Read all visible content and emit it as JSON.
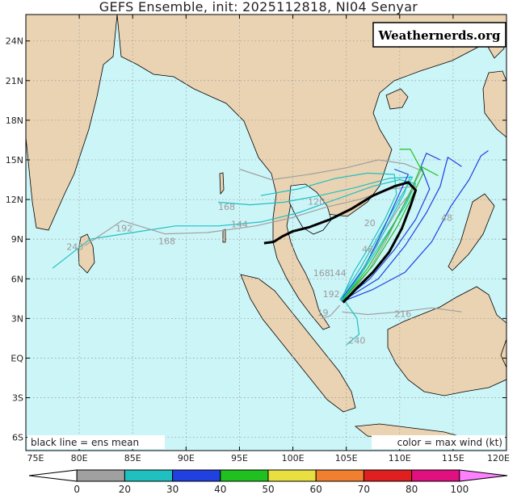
{
  "title": "GEFS Ensemble, init: 2025112818, NI04 Senyar",
  "watermark": "Weathernerds.org",
  "footer": {
    "left": "black line = ens mean",
    "right": "color = max wind (kt)"
  },
  "axes": {
    "lon_labels": [
      "75E",
      "80E",
      "85E",
      "90E",
      "95E",
      "100E",
      "105E",
      "110E",
      "115E",
      "120E"
    ],
    "lat_labels": [
      "24N",
      "21N",
      "18N",
      "15N",
      "12N",
      "9N",
      "6N",
      "3N",
      "EQ",
      "3S",
      "6S"
    ]
  },
  "colorbar": {
    "labels": [
      "0",
      "20",
      "30",
      "40",
      "50",
      "60",
      "70",
      "80",
      "100"
    ],
    "bins": [
      {
        "color": "#ffffff"
      },
      {
        "color": "#a0a0a0"
      },
      {
        "color": "#20c0c0"
      },
      {
        "color": "#2040e0"
      },
      {
        "color": "#20c020"
      },
      {
        "color": "#e8e040"
      },
      {
        "color": "#f08030"
      },
      {
        "color": "#e02020"
      },
      {
        "color": "#e01080"
      },
      {
        "color": "#ff80ff"
      }
    ]
  },
  "hour_labels": [
    {
      "text": "120",
      "lon": 102.2,
      "lat": 11.6
    },
    {
      "text": "168",
      "lon": 93.8,
      "lat": 11.2
    },
    {
      "text": "144",
      "lon": 95.0,
      "lat": 9.9
    },
    {
      "text": "192",
      "lon": 84.2,
      "lat": 9.6
    },
    {
      "text": "168",
      "lon": 88.2,
      "lat": 8.6
    },
    {
      "text": "240",
      "lon": 79.6,
      "lat": 8.2
    },
    {
      "text": "48",
      "lon": 114.4,
      "lat": 10.4
    },
    {
      "text": "20",
      "lon": 107.2,
      "lat": 10.0
    },
    {
      "text": "48",
      "lon": 107.0,
      "lat": 8.0
    },
    {
      "text": "168",
      "lon": 102.7,
      "lat": 6.2
    },
    {
      "text": "144",
      "lon": 104.2,
      "lat": 6.2
    },
    {
      "text": "192",
      "lon": 103.6,
      "lat": 4.6
    },
    {
      "text": "19",
      "lon": 102.8,
      "lat": 3.2
    },
    {
      "text": "216",
      "lon": 110.3,
      "lat": 3.1
    },
    {
      "text": "240",
      "lon": 106.0,
      "lat": 1.1
    }
  ],
  "ensemble_mean": {
    "color": "#000000",
    "points": [
      [
        104.7,
        4.2
      ],
      [
        106.0,
        5.3
      ],
      [
        107.5,
        6.5
      ],
      [
        109.0,
        8.0
      ],
      [
        110.2,
        9.8
      ],
      [
        111.0,
        11.5
      ],
      [
        111.5,
        12.7
      ],
      [
        110.8,
        13.3
      ],
      [
        109.5,
        13.0
      ],
      [
        107.5,
        12.3
      ],
      [
        105.5,
        11.3
      ],
      [
        103.5,
        10.5
      ],
      [
        101.5,
        9.9
      ],
      [
        100.0,
        9.6
      ],
      [
        99.0,
        9.2
      ],
      [
        98.2,
        8.8
      ],
      [
        97.3,
        8.7
      ]
    ]
  },
  "tracks": [
    {
      "color": "#20c0c0",
      "points": [
        [
          104.6,
          4.3
        ],
        [
          106.5,
          6.5
        ],
        [
          108.5,
          9.0
        ],
        [
          110.5,
          11.5
        ],
        [
          111.5,
          13.2
        ],
        [
          110.0,
          13.5
        ],
        [
          107.5,
          13.0
        ],
        [
          104.0,
          12.0
        ],
        [
          100.5,
          11.0
        ],
        [
          97.0,
          10.3
        ],
        [
          93.0,
          10.0
        ],
        [
          89.0,
          10.0
        ],
        [
          85.0,
          9.5
        ],
        [
          81.0,
          9.0
        ],
        [
          77.5,
          6.8
        ]
      ]
    },
    {
      "color": "#20c0c0",
      "points": [
        [
          104.4,
          4.4
        ],
        [
          106.3,
          6.8
        ],
        [
          108.2,
          9.5
        ],
        [
          109.8,
          11.8
        ],
        [
          111.2,
          13.7
        ],
        [
          109.0,
          13.6
        ],
        [
          105.8,
          12.9
        ],
        [
          102.5,
          12.3
        ],
        [
          99.2,
          11.8
        ],
        [
          96.0,
          11.6
        ],
        [
          93.0,
          11.8
        ]
      ]
    },
    {
      "color": "#a0a0a0",
      "points": [
        [
          104.8,
          4.3
        ],
        [
          107.0,
          6.5
        ],
        [
          108.8,
          9.0
        ],
        [
          110.8,
          12.3
        ],
        [
          112.0,
          14.2
        ],
        [
          110.5,
          14.7
        ],
        [
          108.0,
          15.0
        ],
        [
          105.0,
          14.4
        ],
        [
          101.5,
          13.9
        ],
        [
          98.0,
          13.5
        ],
        [
          95.0,
          14.3
        ]
      ]
    },
    {
      "color": "#a0a0a0",
      "points": [
        [
          104.5,
          4.3
        ],
        [
          106.0,
          6.0
        ],
        [
          108.0,
          8.8
        ],
        [
          110.0,
          11.5
        ],
        [
          111.5,
          13.0
        ],
        [
          109.2,
          12.8
        ],
        [
          106.2,
          12.0
        ],
        [
          103.0,
          11.4
        ],
        [
          99.8,
          10.6
        ],
        [
          96.5,
          10.0
        ],
        [
          92.0,
          9.5
        ],
        [
          88.0,
          9.4
        ],
        [
          84.0,
          10.4
        ],
        [
          80.5,
          8.5
        ]
      ]
    },
    {
      "color": "#2040e0",
      "points": [
        [
          104.6,
          4.3
        ],
        [
          107.2,
          6.0
        ],
        [
          109.5,
          8.2
        ],
        [
          111.5,
          10.5
        ],
        [
          112.8,
          12.8
        ],
        [
          112.0,
          14.5
        ],
        [
          112.5,
          15.5
        ],
        [
          113.8,
          15.0
        ]
      ]
    },
    {
      "color": "#2040e0",
      "points": [
        [
          104.8,
          4.4
        ],
        [
          108.0,
          6.0
        ],
        [
          110.5,
          8.5
        ],
        [
          112.5,
          11.0
        ],
        [
          113.8,
          13.0
        ],
        [
          114.5,
          15.2
        ],
        [
          115.8,
          14.5
        ]
      ]
    },
    {
      "color": "#20c020",
      "points": [
        [
          104.8,
          4.5
        ],
        [
          107.5,
          7.0
        ],
        [
          109.8,
          10.0
        ],
        [
          111.5,
          12.8
        ],
        [
          112.2,
          14.0
        ],
        [
          111.0,
          15.8
        ],
        [
          110.0,
          15.8
        ]
      ]
    },
    {
      "color": "#20c020",
      "points": [
        [
          104.7,
          4.4
        ],
        [
          107.0,
          6.8
        ],
        [
          109.0,
          9.5
        ],
        [
          110.8,
          12.2
        ],
        [
          112.0,
          14.5
        ],
        [
          113.6,
          13.8
        ]
      ]
    },
    {
      "color": "#2040e0",
      "points": [
        [
          104.5,
          4.4
        ],
        [
          106.8,
          7.0
        ],
        [
          108.5,
          9.8
        ],
        [
          110.0,
          12.5
        ],
        [
          110.8,
          13.9
        ],
        [
          109.5,
          14.3
        ]
      ]
    },
    {
      "color": "#20c0c0",
      "points": [
        [
          104.6,
          4.4
        ],
        [
          106.2,
          6.2
        ],
        [
          107.8,
          8.4
        ],
        [
          109.2,
          10.6
        ],
        [
          110.4,
          12.4
        ],
        [
          111.0,
          13.8
        ]
      ]
    },
    {
      "color": "#2040e0",
      "points": [
        [
          104.7,
          4.3
        ],
        [
          107.5,
          5.2
        ],
        [
          110.5,
          6.5
        ],
        [
          113.0,
          8.8
        ],
        [
          114.8,
          11.5
        ],
        [
          116.5,
          13.5
        ],
        [
          117.6,
          15.3
        ],
        [
          118.3,
          15.7
        ]
      ]
    },
    {
      "color": "#20c0c0",
      "points": [
        [
          104.5,
          4.4
        ],
        [
          105.7,
          6.5
        ],
        [
          107.2,
          8.5
        ],
        [
          108.6,
          10.5
        ],
        [
          109.7,
          12.4
        ],
        [
          109.5,
          13.9
        ],
        [
          107.0,
          14.0
        ],
        [
          104.0,
          13.6
        ],
        [
          100.5,
          12.8
        ],
        [
          97.0,
          12.3
        ]
      ]
    },
    {
      "color": "#a0a0a0",
      "points": [
        [
          104.6,
          3.5
        ],
        [
          107.0,
          3.3
        ],
        [
          110.0,
          3.5
        ],
        [
          113.0,
          3.8
        ],
        [
          115.8,
          3.5
        ]
      ]
    },
    {
      "color": "#a0a0a0",
      "points": [
        [
          104.4,
          4.0
        ],
        [
          103.5,
          3.2
        ],
        [
          102.7,
          3.0
        ]
      ]
    },
    {
      "color": "#20c0c0",
      "points": [
        [
          104.8,
          4.4
        ],
        [
          106.0,
          3.0
        ],
        [
          106.2,
          1.8
        ],
        [
          105.0,
          1.0
        ]
      ]
    }
  ]
}
